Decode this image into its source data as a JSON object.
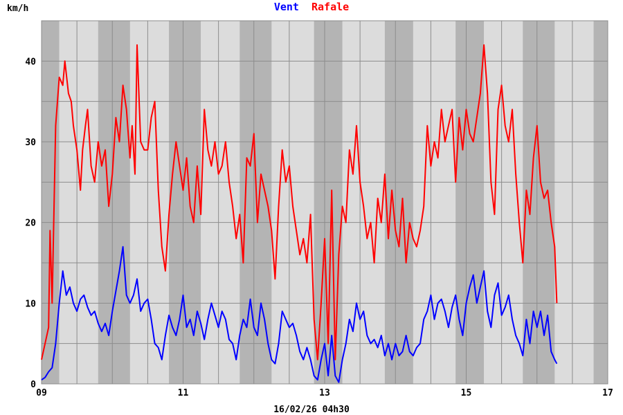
{
  "chart_data": {
    "type": "line",
    "ylabel": "km/h",
    "xlabel": "16/02/26 04h30",
    "legend_position": "top-center",
    "grid": true,
    "xlim": [
      9,
      17
    ],
    "ylim": [
      0,
      45
    ],
    "x_ticks": [
      "09",
      "11",
      "13",
      "15",
      "17"
    ],
    "y_ticks": [
      "0",
      "10",
      "20",
      "30",
      "40"
    ],
    "night_bands": [
      [
        9.0,
        9.25
      ],
      [
        9.8,
        10.25
      ],
      [
        10.8,
        11.25
      ],
      [
        11.8,
        12.25
      ],
      [
        12.85,
        13.25
      ],
      [
        13.85,
        14.25
      ],
      [
        14.85,
        15.25
      ],
      [
        15.8,
        16.25
      ],
      [
        16.8,
        17.0
      ]
    ],
    "series": [
      {
        "name": "Vent",
        "color": "#0000ff",
        "points": [
          [
            9.0,
            0.5
          ],
          [
            9.05,
            0.8
          ],
          [
            9.1,
            1.5
          ],
          [
            9.15,
            2.0
          ],
          [
            9.2,
            5.0
          ],
          [
            9.25,
            10.0
          ],
          [
            9.3,
            14.0
          ],
          [
            9.35,
            11.0
          ],
          [
            9.4,
            12.0
          ],
          [
            9.45,
            10.0
          ],
          [
            9.5,
            9.0
          ],
          [
            9.55,
            10.5
          ],
          [
            9.6,
            11.0
          ],
          [
            9.65,
            9.5
          ],
          [
            9.7,
            8.5
          ],
          [
            9.75,
            9.0
          ],
          [
            9.8,
            7.5
          ],
          [
            9.85,
            6.5
          ],
          [
            9.9,
            7.5
          ],
          [
            9.95,
            6.0
          ],
          [
            10.0,
            9.0
          ],
          [
            10.05,
            11.5
          ],
          [
            10.1,
            14.0
          ],
          [
            10.15,
            17.0
          ],
          [
            10.2,
            11.0
          ],
          [
            10.25,
            10.0
          ],
          [
            10.3,
            11.0
          ],
          [
            10.35,
            13.0
          ],
          [
            10.4,
            9.0
          ],
          [
            10.45,
            10.0
          ],
          [
            10.5,
            10.5
          ],
          [
            10.55,
            8.0
          ],
          [
            10.6,
            5.0
          ],
          [
            10.65,
            4.5
          ],
          [
            10.7,
            3.0
          ],
          [
            10.75,
            6.0
          ],
          [
            10.8,
            8.5
          ],
          [
            10.85,
            7.0
          ],
          [
            10.9,
            6.0
          ],
          [
            10.95,
            8.0
          ],
          [
            11.0,
            11.0
          ],
          [
            11.05,
            7.0
          ],
          [
            11.1,
            8.0
          ],
          [
            11.15,
            6.0
          ],
          [
            11.2,
            9.0
          ],
          [
            11.25,
            7.5
          ],
          [
            11.3,
            5.5
          ],
          [
            11.35,
            8.0
          ],
          [
            11.4,
            10.0
          ],
          [
            11.45,
            8.5
          ],
          [
            11.5,
            7.0
          ],
          [
            11.55,
            9.0
          ],
          [
            11.6,
            8.0
          ],
          [
            11.65,
            5.5
          ],
          [
            11.7,
            5.0
          ],
          [
            11.75,
            3.0
          ],
          [
            11.8,
            6.0
          ],
          [
            11.85,
            8.0
          ],
          [
            11.9,
            7.0
          ],
          [
            11.95,
            10.5
          ],
          [
            12.0,
            7.0
          ],
          [
            12.05,
            6.0
          ],
          [
            12.1,
            10.0
          ],
          [
            12.15,
            8.0
          ],
          [
            12.2,
            5.0
          ],
          [
            12.25,
            3.0
          ],
          [
            12.3,
            2.5
          ],
          [
            12.35,
            5.0
          ],
          [
            12.4,
            9.0
          ],
          [
            12.45,
            8.0
          ],
          [
            12.5,
            7.0
          ],
          [
            12.55,
            7.5
          ],
          [
            12.6,
            6.0
          ],
          [
            12.65,
            4.0
          ],
          [
            12.7,
            3.0
          ],
          [
            12.75,
            4.5
          ],
          [
            12.8,
            3.0
          ],
          [
            12.85,
            1.0
          ],
          [
            12.9,
            0.5
          ],
          [
            12.95,
            3.0
          ],
          [
            13.0,
            5.0
          ],
          [
            13.05,
            1.0
          ],
          [
            13.1,
            6.0
          ],
          [
            13.15,
            1.0
          ],
          [
            13.2,
            0.2
          ],
          [
            13.25,
            3.0
          ],
          [
            13.3,
            5.0
          ],
          [
            13.35,
            8.0
          ],
          [
            13.4,
            6.5
          ],
          [
            13.45,
            10.0
          ],
          [
            13.5,
            8.0
          ],
          [
            13.55,
            9.0
          ],
          [
            13.6,
            6.0
          ],
          [
            13.65,
            5.0
          ],
          [
            13.7,
            5.5
          ],
          [
            13.75,
            4.5
          ],
          [
            13.8,
            6.0
          ],
          [
            13.85,
            3.5
          ],
          [
            13.9,
            5.0
          ],
          [
            13.95,
            3.0
          ],
          [
            14.0,
            5.0
          ],
          [
            14.05,
            3.5
          ],
          [
            14.1,
            4.0
          ],
          [
            14.15,
            6.0
          ],
          [
            14.2,
            4.0
          ],
          [
            14.25,
            3.5
          ],
          [
            14.3,
            4.5
          ],
          [
            14.35,
            5.0
          ],
          [
            14.4,
            8.0
          ],
          [
            14.45,
            9.0
          ],
          [
            14.5,
            11.0
          ],
          [
            14.55,
            8.0
          ],
          [
            14.6,
            10.0
          ],
          [
            14.65,
            10.5
          ],
          [
            14.7,
            9.0
          ],
          [
            14.75,
            7.0
          ],
          [
            14.8,
            9.5
          ],
          [
            14.85,
            11.0
          ],
          [
            14.9,
            8.0
          ],
          [
            14.95,
            6.0
          ],
          [
            15.0,
            10.0
          ],
          [
            15.05,
            12.0
          ],
          [
            15.1,
            13.5
          ],
          [
            15.15,
            10.0
          ],
          [
            15.2,
            12.0
          ],
          [
            15.25,
            14.0
          ],
          [
            15.3,
            9.0
          ],
          [
            15.35,
            7.0
          ],
          [
            15.4,
            11.0
          ],
          [
            15.45,
            12.5
          ],
          [
            15.5,
            8.5
          ],
          [
            15.55,
            9.5
          ],
          [
            15.6,
            11.0
          ],
          [
            15.65,
            8.0
          ],
          [
            15.7,
            6.0
          ],
          [
            15.75,
            5.0
          ],
          [
            15.8,
            3.5
          ],
          [
            15.85,
            8.0
          ],
          [
            15.9,
            5.0
          ],
          [
            15.95,
            9.0
          ],
          [
            16.0,
            7.0
          ],
          [
            16.05,
            9.0
          ],
          [
            16.1,
            6.0
          ],
          [
            16.15,
            8.5
          ],
          [
            16.2,
            4.0
          ],
          [
            16.25,
            3.0
          ],
          [
            16.28,
            2.5
          ]
        ]
      },
      {
        "name": "Rafale",
        "color": "#ff0000",
        "points": [
          [
            9.0,
            3.0
          ],
          [
            9.05,
            5.0
          ],
          [
            9.1,
            7.0
          ],
          [
            9.12,
            19.0
          ],
          [
            9.15,
            10.0
          ],
          [
            9.2,
            32.0
          ],
          [
            9.25,
            38.0
          ],
          [
            9.3,
            37.0
          ],
          [
            9.33,
            40.0
          ],
          [
            9.38,
            36.0
          ],
          [
            9.42,
            35.0
          ],
          [
            9.45,
            32.0
          ],
          [
            9.5,
            29.0
          ],
          [
            9.55,
            24.0
          ],
          [
            9.58,
            29.0
          ],
          [
            9.62,
            32.0
          ],
          [
            9.65,
            34.0
          ],
          [
            9.7,
            27.0
          ],
          [
            9.75,
            25.0
          ],
          [
            9.8,
            30.0
          ],
          [
            9.85,
            27.0
          ],
          [
            9.9,
            29.0
          ],
          [
            9.95,
            22.0
          ],
          [
            10.0,
            26.0
          ],
          [
            10.05,
            33.0
          ],
          [
            10.1,
            30.0
          ],
          [
            10.15,
            37.0
          ],
          [
            10.2,
            34.0
          ],
          [
            10.25,
            28.0
          ],
          [
            10.28,
            32.0
          ],
          [
            10.32,
            26.0
          ],
          [
            10.35,
            42.0
          ],
          [
            10.4,
            30.0
          ],
          [
            10.45,
            29.0
          ],
          [
            10.5,
            29.0
          ],
          [
            10.55,
            33.0
          ],
          [
            10.6,
            35.0
          ],
          [
            10.65,
            24.0
          ],
          [
            10.7,
            17.0
          ],
          [
            10.75,
            14.0
          ],
          [
            10.8,
            21.0
          ],
          [
            10.85,
            26.0
          ],
          [
            10.9,
            30.0
          ],
          [
            10.95,
            27.0
          ],
          [
            11.0,
            24.0
          ],
          [
            11.05,
            28.0
          ],
          [
            11.1,
            22.0
          ],
          [
            11.15,
            20.0
          ],
          [
            11.2,
            27.0
          ],
          [
            11.25,
            21.0
          ],
          [
            11.3,
            34.0
          ],
          [
            11.35,
            29.0
          ],
          [
            11.4,
            27.0
          ],
          [
            11.45,
            30.0
          ],
          [
            11.5,
            26.0
          ],
          [
            11.55,
            27.0
          ],
          [
            11.6,
            30.0
          ],
          [
            11.65,
            25.0
          ],
          [
            11.7,
            22.0
          ],
          [
            11.75,
            18.0
          ],
          [
            11.8,
            21.0
          ],
          [
            11.85,
            15.0
          ],
          [
            11.9,
            28.0
          ],
          [
            11.95,
            27.0
          ],
          [
            12.0,
            31.0
          ],
          [
            12.05,
            20.0
          ],
          [
            12.1,
            26.0
          ],
          [
            12.15,
            24.0
          ],
          [
            12.2,
            22.0
          ],
          [
            12.25,
            19.0
          ],
          [
            12.3,
            13.0
          ],
          [
            12.35,
            22.0
          ],
          [
            12.4,
            29.0
          ],
          [
            12.45,
            25.0
          ],
          [
            12.5,
            27.0
          ],
          [
            12.55,
            22.0
          ],
          [
            12.6,
            19.0
          ],
          [
            12.65,
            16.0
          ],
          [
            12.7,
            18.0
          ],
          [
            12.75,
            15.0
          ],
          [
            12.8,
            21.0
          ],
          [
            12.85,
            8.0
          ],
          [
            12.9,
            3.0
          ],
          [
            12.95,
            10.0
          ],
          [
            13.0,
            18.0
          ],
          [
            13.05,
            5.0
          ],
          [
            13.1,
            24.0
          ],
          [
            13.15,
            3.0
          ],
          [
            13.2,
            16.0
          ],
          [
            13.25,
            22.0
          ],
          [
            13.3,
            20.0
          ],
          [
            13.35,
            29.0
          ],
          [
            13.4,
            26.0
          ],
          [
            13.45,
            32.0
          ],
          [
            13.5,
            25.0
          ],
          [
            13.55,
            22.0
          ],
          [
            13.6,
            18.0
          ],
          [
            13.65,
            20.0
          ],
          [
            13.7,
            15.0
          ],
          [
            13.75,
            23.0
          ],
          [
            13.8,
            20.0
          ],
          [
            13.85,
            26.0
          ],
          [
            13.9,
            18.0
          ],
          [
            13.95,
            24.0
          ],
          [
            14.0,
            19.0
          ],
          [
            14.05,
            17.0
          ],
          [
            14.1,
            23.0
          ],
          [
            14.15,
            15.0
          ],
          [
            14.2,
            20.0
          ],
          [
            14.25,
            18.0
          ],
          [
            14.3,
            17.0
          ],
          [
            14.35,
            19.0
          ],
          [
            14.4,
            22.0
          ],
          [
            14.45,
            32.0
          ],
          [
            14.5,
            27.0
          ],
          [
            14.55,
            30.0
          ],
          [
            14.6,
            28.0
          ],
          [
            14.65,
            34.0
          ],
          [
            14.7,
            30.0
          ],
          [
            14.75,
            32.0
          ],
          [
            14.8,
            34.0
          ],
          [
            14.85,
            25.0
          ],
          [
            14.9,
            33.0
          ],
          [
            14.95,
            29.0
          ],
          [
            15.0,
            34.0
          ],
          [
            15.05,
            31.0
          ],
          [
            15.1,
            30.0
          ],
          [
            15.15,
            33.0
          ],
          [
            15.2,
            36.0
          ],
          [
            15.25,
            42.0
          ],
          [
            15.3,
            36.0
          ],
          [
            15.35,
            25.0
          ],
          [
            15.4,
            21.0
          ],
          [
            15.45,
            34.0
          ],
          [
            15.5,
            37.0
          ],
          [
            15.55,
            32.0
          ],
          [
            15.6,
            30.0
          ],
          [
            15.65,
            34.0
          ],
          [
            15.7,
            26.0
          ],
          [
            15.75,
            20.0
          ],
          [
            15.8,
            15.0
          ],
          [
            15.85,
            24.0
          ],
          [
            15.9,
            21.0
          ],
          [
            15.95,
            28.0
          ],
          [
            16.0,
            32.0
          ],
          [
            16.05,
            25.0
          ],
          [
            16.1,
            23.0
          ],
          [
            16.15,
            24.0
          ],
          [
            16.2,
            20.0
          ],
          [
            16.25,
            17.0
          ],
          [
            16.28,
            10.0
          ]
        ]
      }
    ]
  }
}
